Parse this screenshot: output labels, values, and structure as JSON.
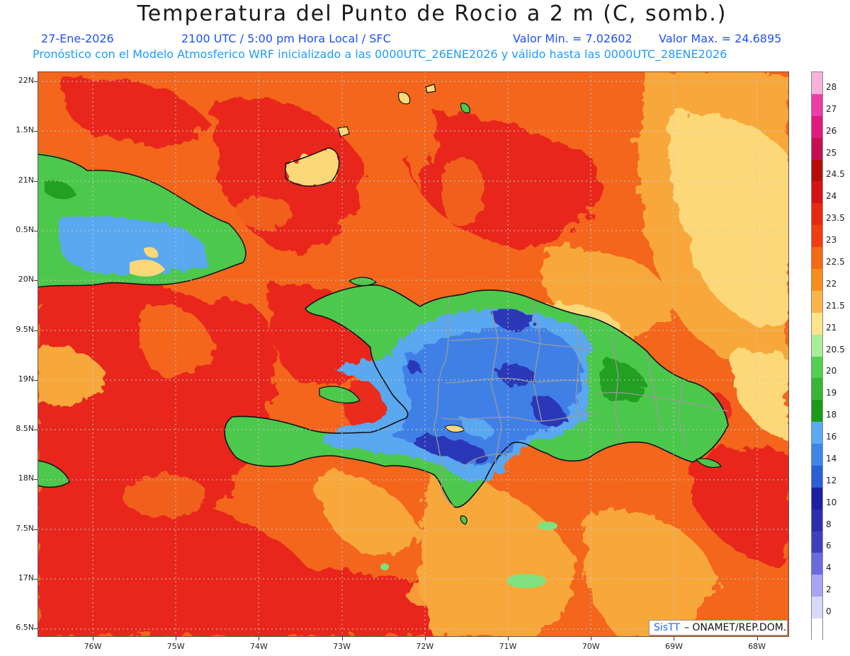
{
  "header": {
    "title": "Temperatura del Punto de Rocio a 2 m (C, somb.)",
    "date": "27-Ene-2026",
    "time": "2100 UTC / 5:00 pm Hora Local / SFC",
    "min": "Valor Min. = 7.02602",
    "max": "Valor Max. = 24.6895",
    "forecast": "Pronóstico con el Modelo Atmosferico WRF inicializado a las 0000UTC_26ENE2026 y válido hasta las  0000UTC_28ENE2026"
  },
  "axes": {
    "lat_labels": [
      "22N",
      "1.5N",
      "21N",
      "0.5N",
      "20N",
      "9.5N",
      "19N",
      "8.5N",
      "18N",
      "7.5N",
      "17N",
      "6.5N"
    ],
    "lon_labels": [
      "76W",
      "75W",
      "74W",
      "73W",
      "72W",
      "71W",
      "70W",
      "69W",
      "68W"
    ]
  },
  "colorbar": {
    "levels": [
      "28",
      "27",
      "26",
      "25",
      "24.5",
      "24",
      "23.5",
      "23",
      "22.5",
      "22",
      "21.5",
      "21",
      "20.5",
      "20",
      "19",
      "18",
      "16",
      "14",
      "12",
      "10",
      "8",
      "6",
      "4",
      "2",
      "0"
    ],
    "colors": [
      "#f5b3d9",
      "#f03ca8",
      "#e01b7e",
      "#c40f52",
      "#b50c0c",
      "#d41414",
      "#e62a10",
      "#ef3f12",
      "#f56a14",
      "#f88e1a",
      "#f9b44a",
      "#fbe48a",
      "#a8ee98",
      "#52d052",
      "#36b536",
      "#1c9a1c",
      "#5aaaf2",
      "#3d86e6",
      "#2a5fd6",
      "#1e1ea6",
      "#2d2dae",
      "#3f3fbe",
      "#6a6ae0",
      "#a5a5f2",
      "#d8d8f8"
    ],
    "bottom_color": "#ffffff"
  },
  "credit": {
    "logo_text": "SisTT",
    "text": "– ONAMET/REP.DOM."
  },
  "map": {
    "field": "dew point temperature at 2 m",
    "colors": {
      "ocean_deep": "#e8281a",
      "ocean_mid": "#f3661c",
      "ocean_light": "#f8a83a",
      "pale": "#fcd878",
      "land_green": "#4cc84c",
      "land_dark_green": "#22a022",
      "land_light_blue": "#5aa8f0",
      "land_blue": "#3f80e6",
      "land_darkblue": "#2a38b8",
      "coast": "#111111",
      "border": "#9a9a9a",
      "grid": "#c8c8c8"
    }
  }
}
